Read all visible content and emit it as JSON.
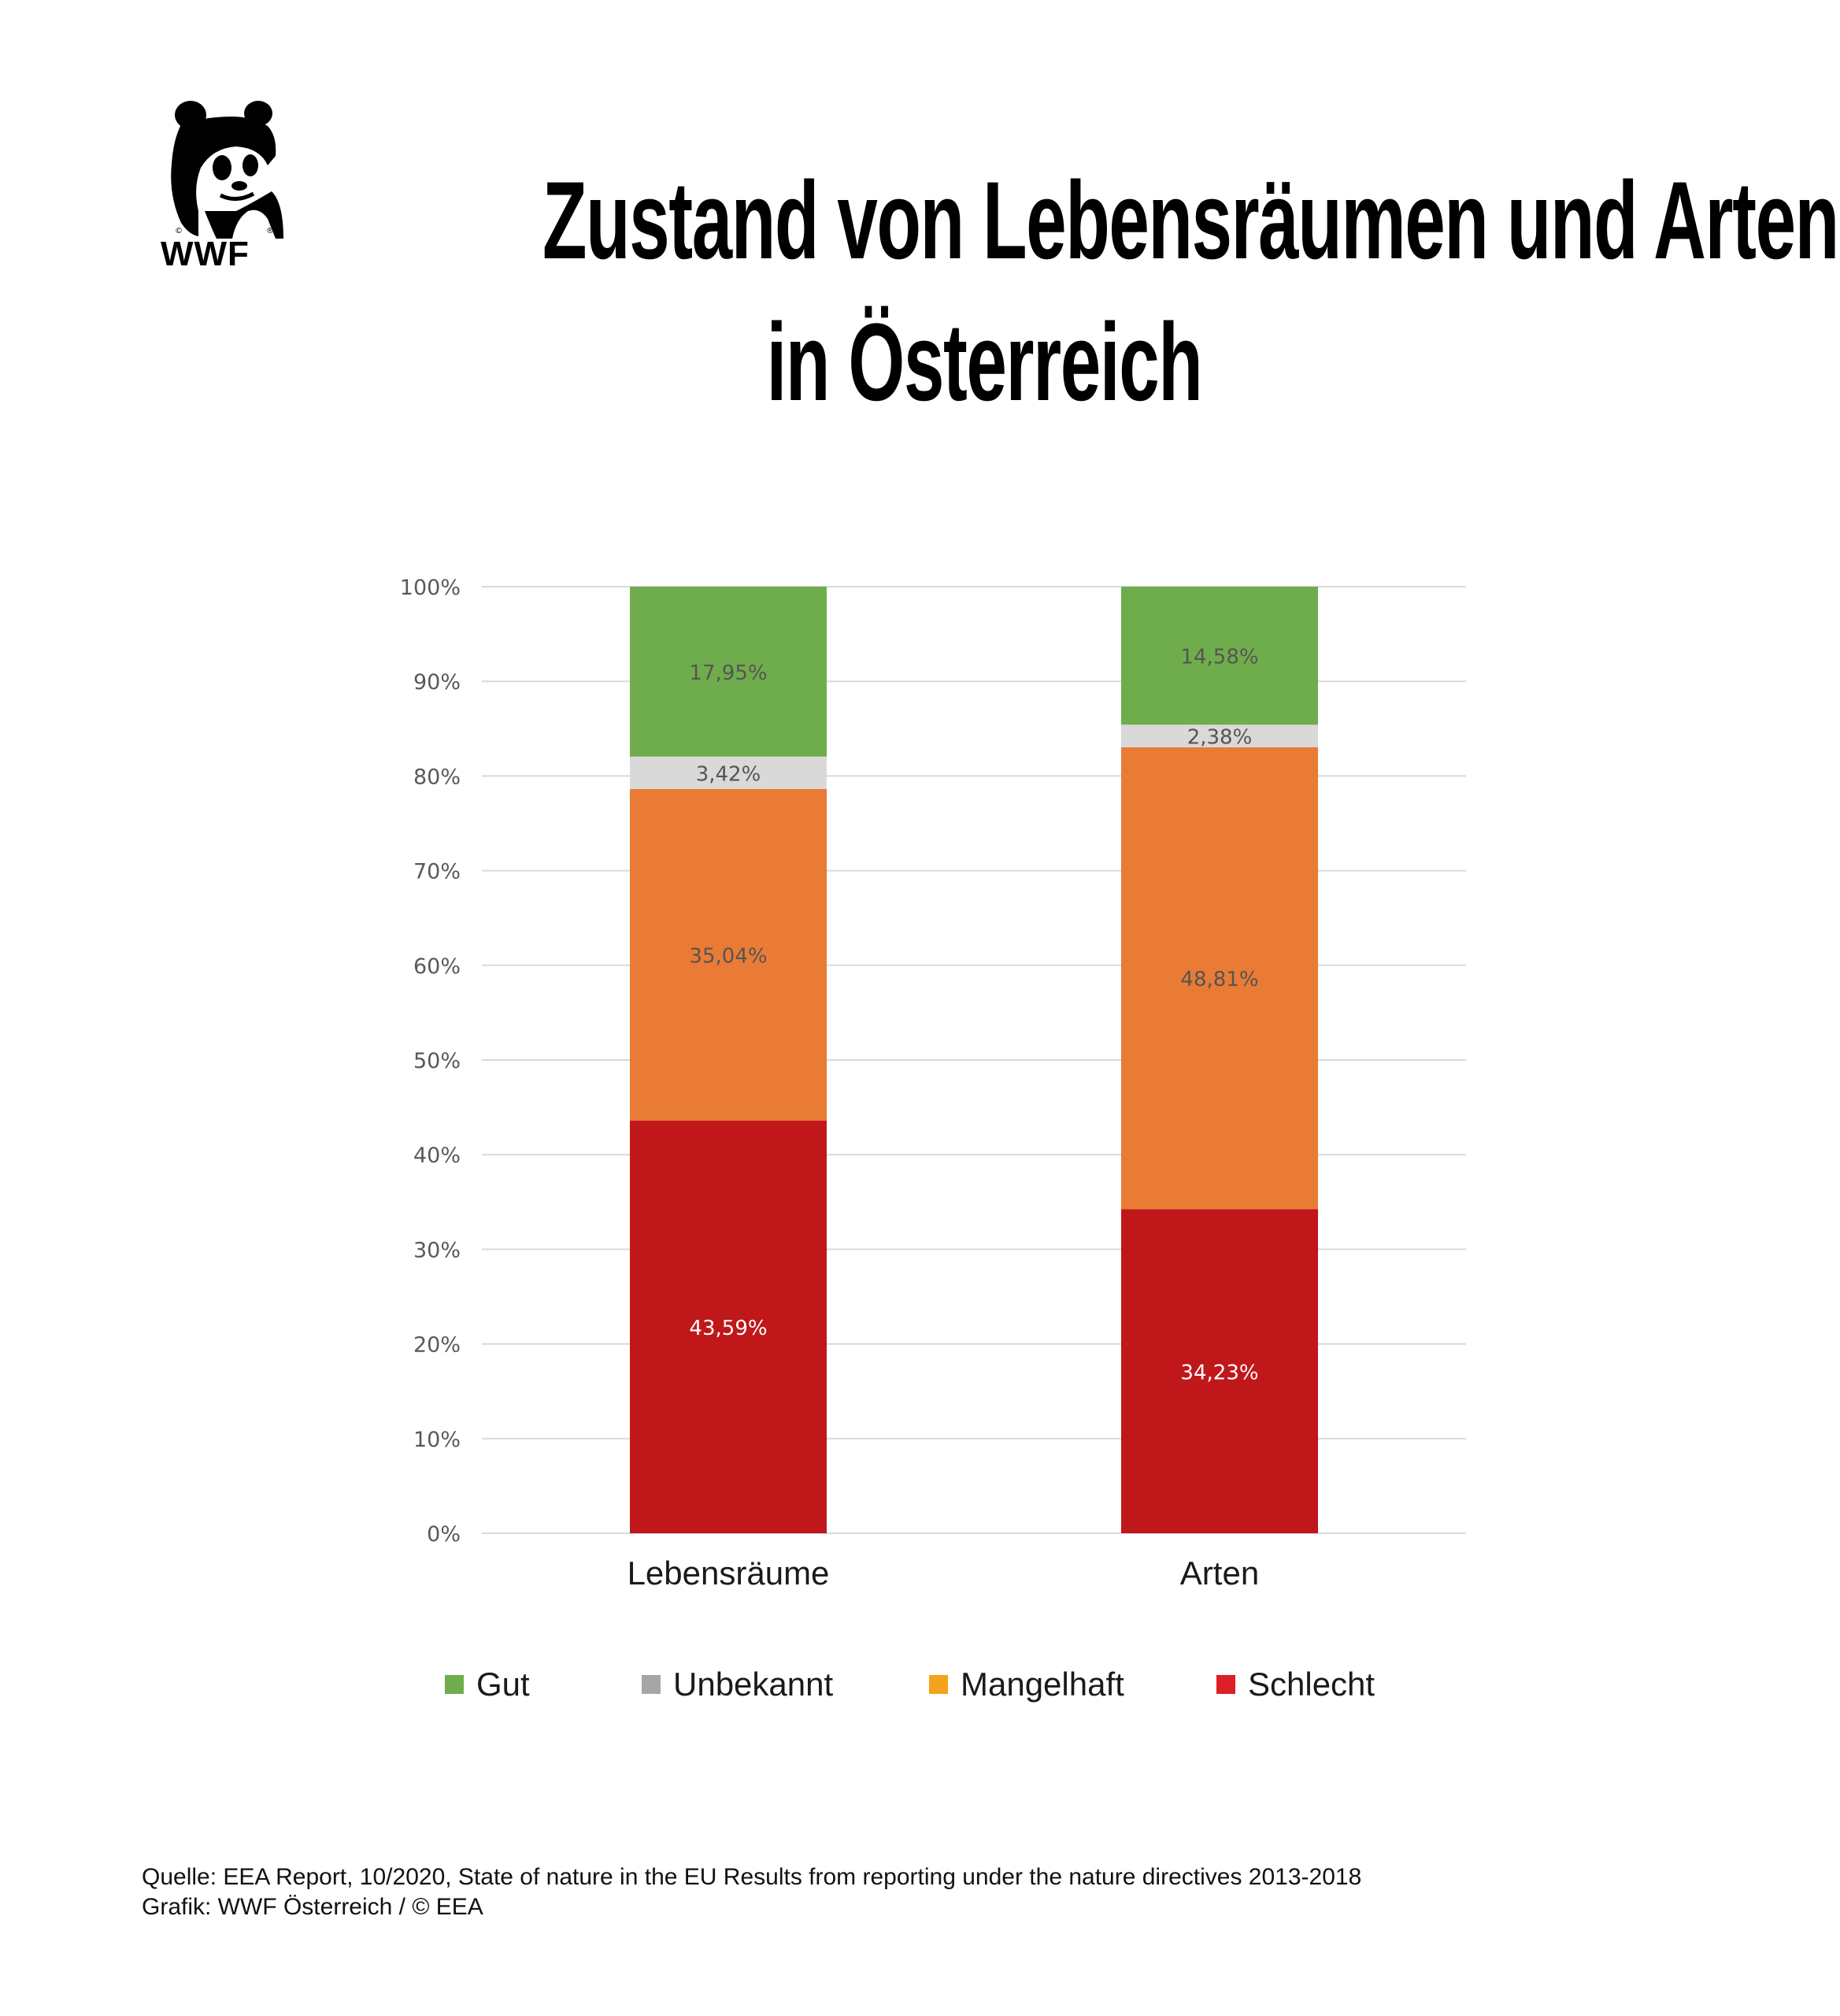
{
  "logo": {
    "text": "WWF",
    "icon": "panda-logo"
  },
  "title": {
    "line1": "Zustand von Lebensräumen und Arten",
    "line2": "in Österreich"
  },
  "chart_data": {
    "type": "bar",
    "stacked": true,
    "categories": [
      "Lebensräume",
      "Arten"
    ],
    "series": [
      {
        "name": "Schlecht",
        "color": "#c0171b",
        "values": [
          43.59,
          34.23
        ],
        "labels": [
          "43,59%",
          "34,23%"
        ],
        "label_color": "#ffffff"
      },
      {
        "name": "Mangelhaft",
        "color": "#ea7b35",
        "values": [
          35.04,
          48.81
        ],
        "labels": [
          "35,04%",
          "48,81%"
        ],
        "label_color": "#555555"
      },
      {
        "name": "Unbekannt",
        "color": "#d9d9d9",
        "values": [
          3.42,
          2.38
        ],
        "labels": [
          "3,42%",
          "2,38%"
        ],
        "label_color": "#555555"
      },
      {
        "name": "Gut",
        "color": "#6fad4c",
        "values": [
          17.95,
          14.58
        ],
        "labels": [
          "17,95%",
          "14,58%"
        ],
        "label_color": "#555555"
      }
    ],
    "ylim": [
      0,
      100
    ],
    "yticks": [
      "0%",
      "10%",
      "20%",
      "30%",
      "40%",
      "50%",
      "60%",
      "70%",
      "80%",
      "90%",
      "100%"
    ],
    "grid": true,
    "legend_position": "bottom",
    "legend": [
      {
        "name": "Gut",
        "color": "#6fad4c"
      },
      {
        "name": "Unbekannt",
        "color": "#a6a6a6"
      },
      {
        "name": "Mangelhaft",
        "color": "#f5a21b"
      },
      {
        "name": "Schlecht",
        "color": "#dd1f26"
      }
    ]
  },
  "footer": {
    "source": "Quelle: EEA Report, 10/2020, State of nature in the EU Results from reporting under the nature directives 2013-2018",
    "credit": "Grafik: WWF Österreich / © EEA"
  }
}
